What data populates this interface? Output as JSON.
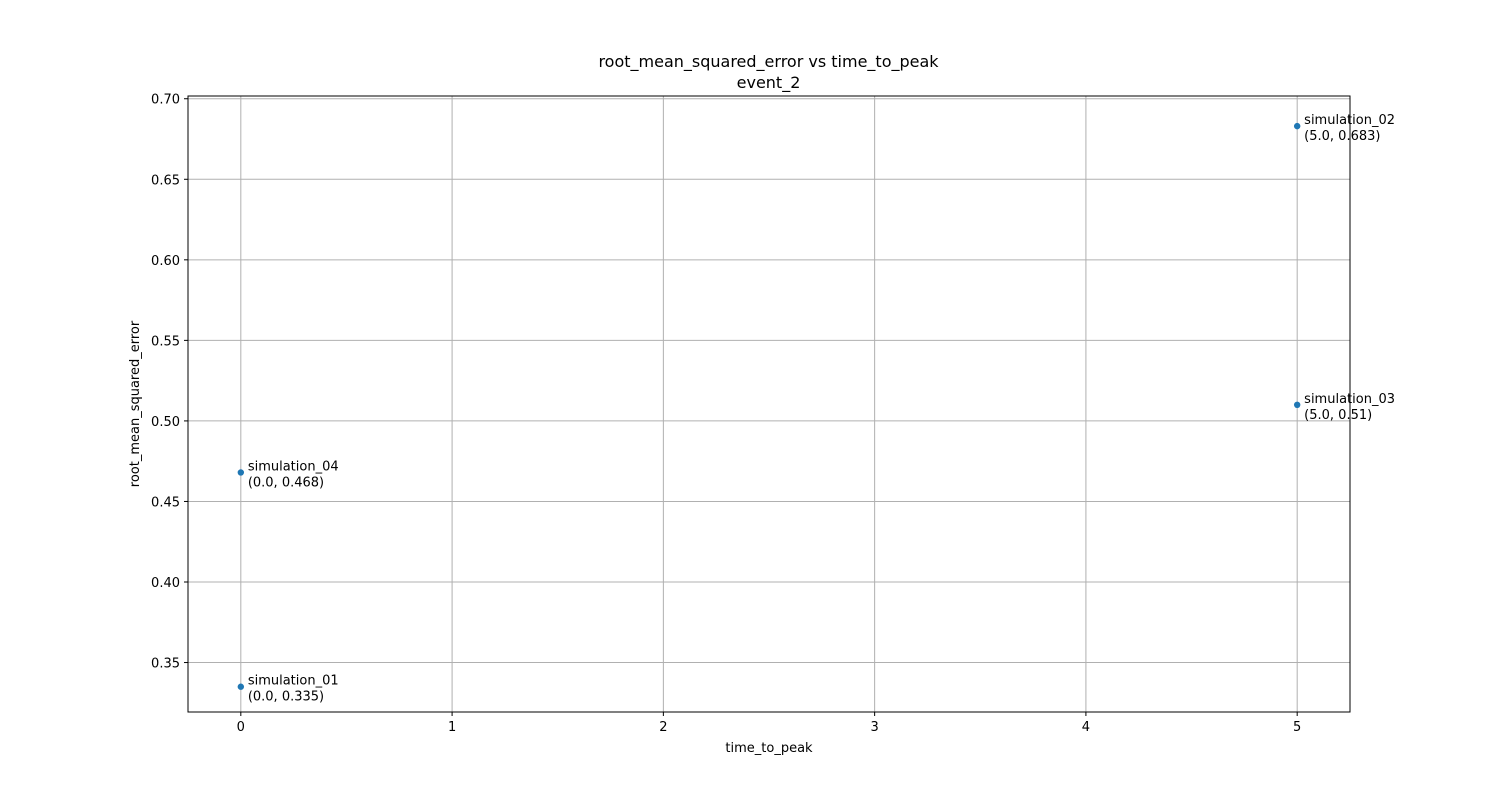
{
  "chart_data": {
    "type": "scatter",
    "title": "root_mean_squared_error vs time_to_peak",
    "subtitle": "event_2",
    "xlabel": "time_to_peak",
    "ylabel": "root_mean_squared_error",
    "xlim": [
      -0.25,
      5.25
    ],
    "ylim": [
      0.3193,
      0.7017
    ],
    "xticks": [
      0,
      1,
      2,
      3,
      4,
      5
    ],
    "xtick_labels": [
      "0",
      "1",
      "2",
      "3",
      "4",
      "5"
    ],
    "yticks": [
      0.35,
      0.4,
      0.45,
      0.5,
      0.55,
      0.6,
      0.65,
      0.7
    ],
    "ytick_labels": [
      "0.35",
      "0.40",
      "0.45",
      "0.50",
      "0.55",
      "0.60",
      "0.65",
      "0.70"
    ],
    "grid": true,
    "point_color": "#1f77b4",
    "points": [
      {
        "name": "simulation_02",
        "coord_label": "(5.0, 0.683)",
        "x": 5.0,
        "y": 0.683
      },
      {
        "name": "simulation_03",
        "coord_label": "(5.0, 0.51)",
        "x": 5.0,
        "y": 0.51
      },
      {
        "name": "simulation_04",
        "coord_label": "(0.0, 0.468)",
        "x": 0.0,
        "y": 0.468
      },
      {
        "name": "simulation_01",
        "coord_label": "(0.0, 0.335)",
        "x": 0.0,
        "y": 0.335
      }
    ]
  }
}
